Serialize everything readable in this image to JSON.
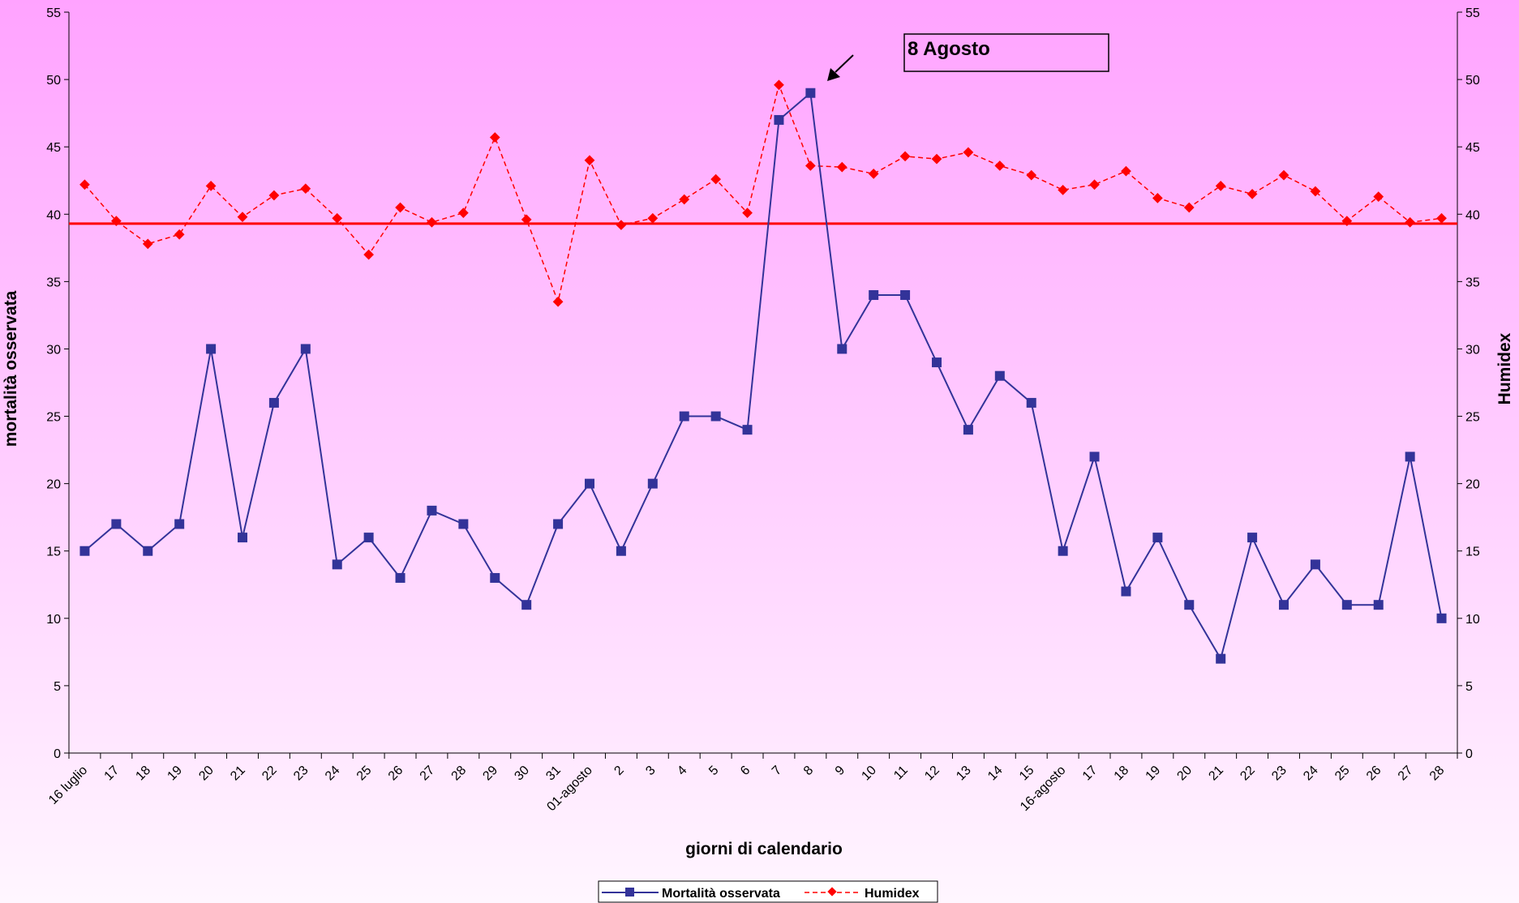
{
  "chart_data": {
    "type": "line",
    "xlabel": "giorni di calendario",
    "ylabel_left": "mortalità osservata",
    "ylabel_right": "Humidex",
    "ylim": [
      0,
      55
    ],
    "y_ticks": [
      0,
      5,
      10,
      15,
      20,
      25,
      30,
      35,
      40,
      45,
      50,
      55
    ],
    "grid": false,
    "legend_position": "bottom",
    "categories": [
      "16 luglio",
      "17",
      "18",
      "19",
      "20",
      "21",
      "22",
      "23",
      "24",
      "25",
      "26",
      "27",
      "28",
      "29",
      "30",
      "31",
      "01-agosto",
      "2",
      "3",
      "4",
      "5",
      "6",
      "7",
      "8",
      "9",
      "10",
      "11",
      "12",
      "13",
      "14",
      "15",
      "16-agosto",
      "17",
      "18",
      "19",
      "20",
      "21",
      "22",
      "23",
      "24",
      "25",
      "26",
      "27",
      "28"
    ],
    "series": [
      {
        "name": "Mortalità osservata",
        "axis": "left",
        "color": "#333399",
        "values": [
          15,
          17,
          15,
          17,
          30,
          16,
          26,
          30,
          14,
          16,
          13,
          18,
          17,
          13,
          11,
          17,
          20,
          15,
          20,
          25,
          25,
          24,
          47,
          49,
          30,
          34,
          34,
          29,
          24,
          28,
          26,
          15,
          22,
          12,
          16,
          11,
          7,
          16,
          11,
          14,
          11,
          11,
          22,
          10
        ]
      },
      {
        "name": "Humidex",
        "axis": "right",
        "color": "#ff0000",
        "values": [
          42.2,
          39.5,
          37.8,
          38.5,
          42.1,
          39.8,
          41.4,
          41.9,
          39.7,
          37.0,
          40.5,
          39.4,
          40.1,
          45.7,
          39.6,
          33.5,
          44.0,
          39.2,
          39.7,
          41.1,
          42.6,
          40.1,
          49.6,
          43.6,
          43.5,
          43.0,
          44.3,
          44.1,
          44.6,
          43.6,
          42.9,
          41.8,
          42.2,
          43.2,
          41.2,
          40.5,
          42.1,
          41.5,
          42.9,
          41.7,
          39.5,
          41.3,
          39.4,
          39.7
        ]
      }
    ],
    "threshold": {
      "value": 39.3,
      "color": "#ff0000"
    },
    "annotation": {
      "text": "8 Agosto",
      "target_index": 23
    },
    "background_gradient": [
      "#ffa3ff",
      "#fff6ff"
    ]
  }
}
